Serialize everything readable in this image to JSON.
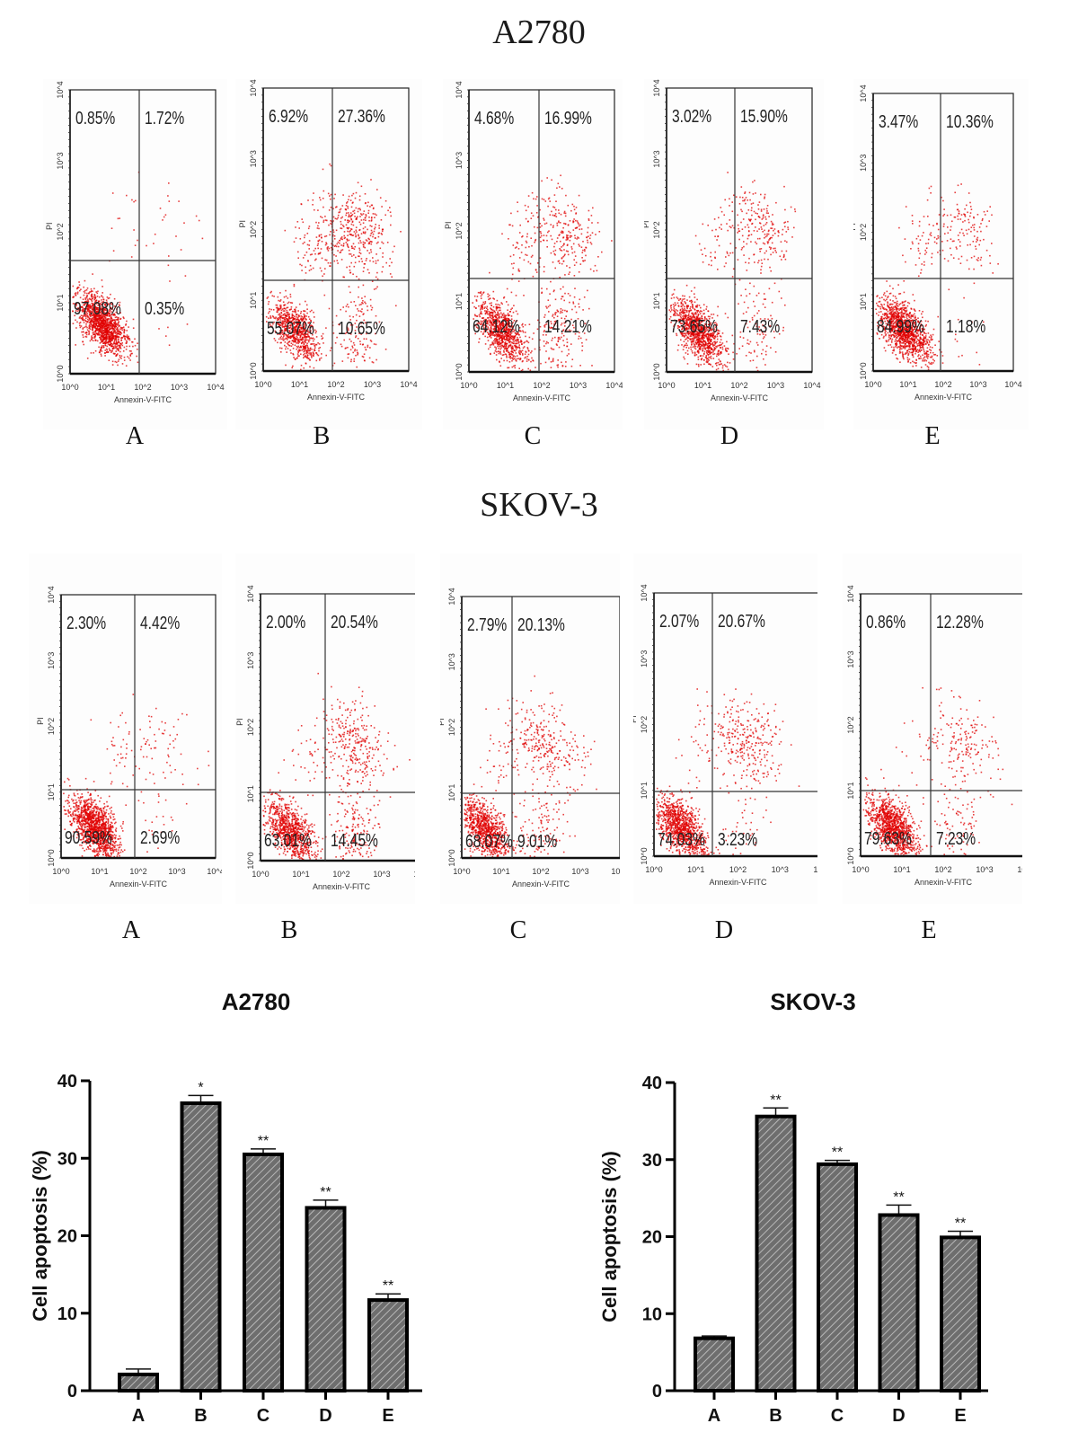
{
  "figure": {
    "sections": [
      {
        "title": "A2780"
      },
      {
        "title": "SKOV-3"
      }
    ]
  },
  "flow_axes": {
    "x_label": "Annexin-V-FITC",
    "y_label": "PI",
    "ticks": [
      "10^0",
      "10^1",
      "10^2",
      "10^3",
      "10^4"
    ]
  },
  "flow_panels": {
    "A2780": [
      {
        "label": "A",
        "q_upper_left": "0.85%",
        "q_upper_right": "1.72%",
        "q_lower_left": "97.08%",
        "q_lower_right": "0.35%"
      },
      {
        "label": "B",
        "q_upper_left": "6.92%",
        "q_upper_right": "27.36%",
        "q_lower_left": "55.07%",
        "q_lower_right": "10.65%"
      },
      {
        "label": "C",
        "q_upper_left": "4.68%",
        "q_upper_right": "16.99%",
        "q_lower_left": "64.12%",
        "q_lower_right": "14.21%"
      },
      {
        "label": "D",
        "q_upper_left": "3.02%",
        "q_upper_right": "15.90%",
        "q_lower_left": "73.65%",
        "q_lower_right": "7.43%"
      },
      {
        "label": "E",
        "q_upper_left": "3.47%",
        "q_upper_right": "10.36%",
        "q_lower_left": "84.99%",
        "q_lower_right": "1.18%"
      }
    ],
    "SKOV-3": [
      {
        "label": "A",
        "q_upper_left": "2.30%",
        "q_upper_right": "4.42%",
        "q_lower_left": "90.59%",
        "q_lower_right": "2.69%"
      },
      {
        "label": "B",
        "q_upper_left": "2.00%",
        "q_upper_right": "20.54%",
        "q_lower_left": "63.01%",
        "q_lower_right": "14.45%"
      },
      {
        "label": "C",
        "q_upper_left": "2.79%",
        "q_upper_right": "20.13%",
        "q_lower_left": "68.07%",
        "q_lower_right": "9.01%"
      },
      {
        "label": "D",
        "q_upper_left": "2.07%",
        "q_upper_right": "20.67%",
        "q_lower_left": "74.03%",
        "q_lower_right": "3.23%"
      },
      {
        "label": "E",
        "q_upper_left": "0.86%",
        "q_upper_right": "12.28%",
        "q_lower_left": "79.63%",
        "q_lower_right": "7.23%"
      }
    ]
  },
  "colors": {
    "dot": "#e00000",
    "bar_fill": "#6e6e6e",
    "bar_hatch": "#b8b8b8",
    "axis": "#000000"
  },
  "chart_data": [
    {
      "type": "bar",
      "title": "A2780",
      "xlabel": "",
      "ylabel": "Cell apoptosis (%)",
      "categories": [
        "A",
        "B",
        "C",
        "D",
        "E"
      ],
      "values": [
        2.1,
        37.1,
        30.5,
        23.6,
        11.7
      ],
      "error": [
        0.7,
        1.0,
        0.7,
        1.0,
        0.8
      ],
      "significance": [
        "",
        "*",
        "**",
        "**",
        "**"
      ],
      "ylim": [
        0,
        40
      ],
      "yticks": [
        0,
        10,
        20,
        30,
        40
      ],
      "grid": false,
      "legend": "none"
    },
    {
      "type": "bar",
      "title": "SKOV-3",
      "xlabel": "",
      "ylabel": "Cell apoptosis (%)",
      "categories": [
        "A",
        "B",
        "C",
        "D",
        "E"
      ],
      "values": [
        6.8,
        35.6,
        29.4,
        22.8,
        19.9
      ],
      "error": [
        0.3,
        1.1,
        0.5,
        1.3,
        0.8
      ],
      "significance": [
        "",
        "**",
        "**",
        "**",
        "**"
      ],
      "ylim": [
        0,
        40
      ],
      "yticks": [
        0,
        10,
        20,
        30,
        40
      ],
      "grid": false,
      "legend": "none"
    }
  ]
}
